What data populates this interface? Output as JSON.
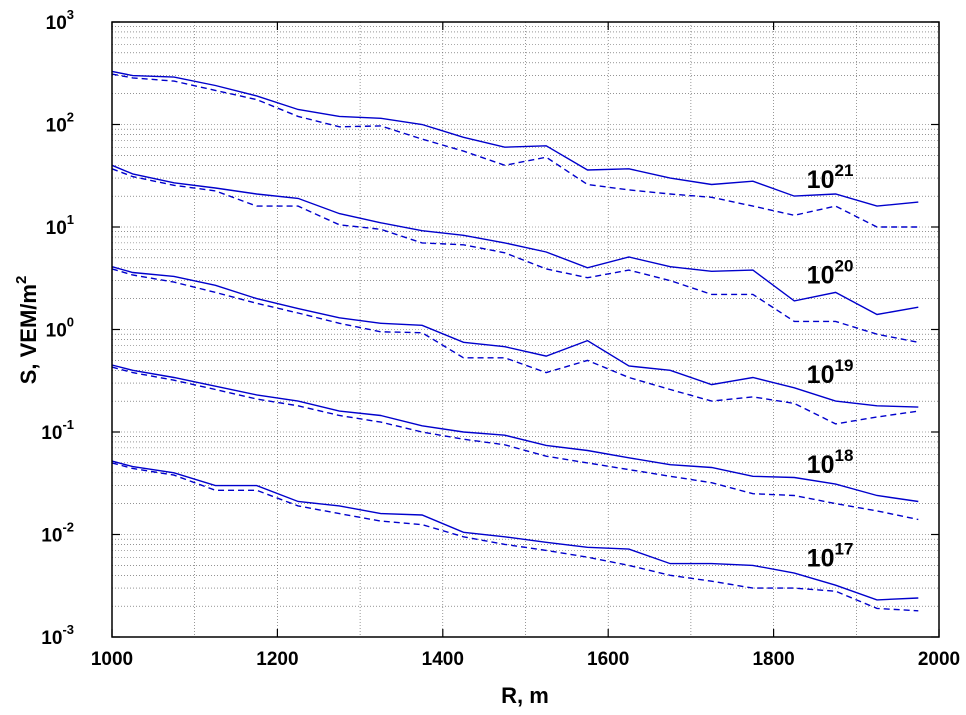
{
  "chart_data": {
    "type": "line",
    "xlabel": "R, m",
    "ylabel": {
      "base": "S, VEM/m",
      "sup": "2"
    },
    "xlim": [
      1000,
      2000
    ],
    "ylim": [
      0.001,
      1000
    ],
    "yscale": "log",
    "grid": true,
    "x_ticks": [
      "1000",
      "1200",
      "1400",
      "1600",
      "1800",
      "2000"
    ],
    "y_ticks": [
      {
        "base": "10",
        "sup": "-3"
      },
      {
        "base": "10",
        "sup": "-2"
      },
      {
        "base": "10",
        "sup": "-1"
      },
      {
        "base": "10",
        "sup": "0"
      },
      {
        "base": "10",
        "sup": "1"
      },
      {
        "base": "10",
        "sup": "2"
      },
      {
        "base": "10",
        "sup": "3"
      }
    ],
    "x": [
      1000,
      1025,
      1075,
      1125,
      1175,
      1225,
      1275,
      1325,
      1375,
      1425,
      1475,
      1525,
      1575,
      1625,
      1675,
      1725,
      1775,
      1825,
      1875,
      1925,
      1975
    ],
    "series": [
      {
        "annotation": {
          "base": "10",
          "sup": "21"
        },
        "color": "#0000cc",
        "style": "solid",
        "values": [
          330,
          300,
          290,
          240,
          190,
          140,
          120,
          115,
          100,
          75,
          60,
          62,
          36,
          37,
          30,
          26,
          28,
          20,
          21,
          16,
          17.5
        ]
      },
      {
        "annotation": {
          "base": "10",
          "sup": "21"
        },
        "color": "#0000cc",
        "style": "dashed",
        "values": [
          310,
          285,
          265,
          215,
          175,
          120,
          95,
          97,
          72,
          55,
          40,
          48,
          26,
          23,
          21,
          19.5,
          16,
          13,
          16,
          10,
          10
        ]
      },
      {
        "annotation": {
          "base": "10",
          "sup": "20"
        },
        "color": "#0000cc",
        "style": "solid",
        "values": [
          40,
          33,
          27,
          24,
          21,
          19,
          13.5,
          11,
          9.2,
          8.3,
          7,
          5.7,
          4,
          5.1,
          4.1,
          3.7,
          3.8,
          1.9,
          2.3,
          1.4,
          1.65
        ]
      },
      {
        "annotation": {
          "base": "10",
          "sup": "20"
        },
        "color": "#0000cc",
        "style": "dashed",
        "values": [
          37,
          31,
          25.5,
          22.5,
          16,
          16,
          10.5,
          9.5,
          7,
          6.7,
          5.6,
          3.9,
          3.2,
          3.8,
          3,
          2.2,
          2.2,
          1.2,
          1.2,
          0.9,
          0.75
        ]
      },
      {
        "annotation": {
          "base": "10",
          "sup": "19"
        },
        "color": "#0000cc",
        "style": "solid",
        "values": [
          4.1,
          3.6,
          3.3,
          2.7,
          2,
          1.6,
          1.3,
          1.15,
          1.1,
          0.75,
          0.68,
          0.55,
          0.78,
          0.44,
          0.4,
          0.29,
          0.34,
          0.27,
          0.2,
          0.18,
          0.175
        ]
      },
      {
        "annotation": {
          "base": "10",
          "sup": "19"
        },
        "color": "#0000cc",
        "style": "dashed",
        "values": [
          3.9,
          3.4,
          2.9,
          2.3,
          1.8,
          1.45,
          1.15,
          0.95,
          0.93,
          0.53,
          0.53,
          0.38,
          0.5,
          0.34,
          0.26,
          0.2,
          0.22,
          0.19,
          0.12,
          0.14,
          0.16
        ]
      },
      {
        "annotation": {
          "base": "10",
          "sup": "18"
        },
        "color": "#0000cc",
        "style": "solid",
        "values": [
          0.45,
          0.4,
          0.34,
          0.28,
          0.23,
          0.2,
          0.16,
          0.145,
          0.115,
          0.1,
          0.093,
          0.074,
          0.066,
          0.056,
          0.048,
          0.045,
          0.037,
          0.036,
          0.031,
          0.024,
          0.021
        ]
      },
      {
        "annotation": {
          "base": "10",
          "sup": "18"
        },
        "color": "#0000cc",
        "style": "dashed",
        "values": [
          0.43,
          0.38,
          0.32,
          0.26,
          0.21,
          0.18,
          0.145,
          0.125,
          0.1,
          0.085,
          0.075,
          0.058,
          0.05,
          0.043,
          0.037,
          0.032,
          0.025,
          0.024,
          0.02,
          0.017,
          0.014
        ]
      },
      {
        "annotation": {
          "base": "10",
          "sup": "17"
        },
        "color": "#0000cc",
        "style": "solid",
        "values": [
          0.052,
          0.046,
          0.04,
          0.03,
          0.03,
          0.021,
          0.019,
          0.016,
          0.0155,
          0.0105,
          0.0095,
          0.0084,
          0.0075,
          0.0072,
          0.0052,
          0.0052,
          0.005,
          0.0042,
          0.0032,
          0.0023,
          0.0024
        ]
      },
      {
        "annotation": {
          "base": "10",
          "sup": "17"
        },
        "color": "#0000cc",
        "style": "dashed",
        "values": [
          0.05,
          0.044,
          0.038,
          0.027,
          0.027,
          0.019,
          0.016,
          0.0135,
          0.0125,
          0.0095,
          0.008,
          0.007,
          0.006,
          0.005,
          0.004,
          0.0035,
          0.003,
          0.003,
          0.0028,
          0.0019,
          0.0018
        ]
      }
    ],
    "annotations": [
      {
        "base": "10",
        "sup": "21",
        "x": 1840,
        "y": 24
      },
      {
        "base": "10",
        "sup": "20",
        "x": 1840,
        "y": 2.8
      },
      {
        "base": "10",
        "sup": "19",
        "x": 1840,
        "y": 0.3
      },
      {
        "base": "10",
        "sup": "18",
        "x": 1840,
        "y": 0.04
      },
      {
        "base": "10",
        "sup": "17",
        "x": 1840,
        "y": 0.0049
      }
    ]
  }
}
